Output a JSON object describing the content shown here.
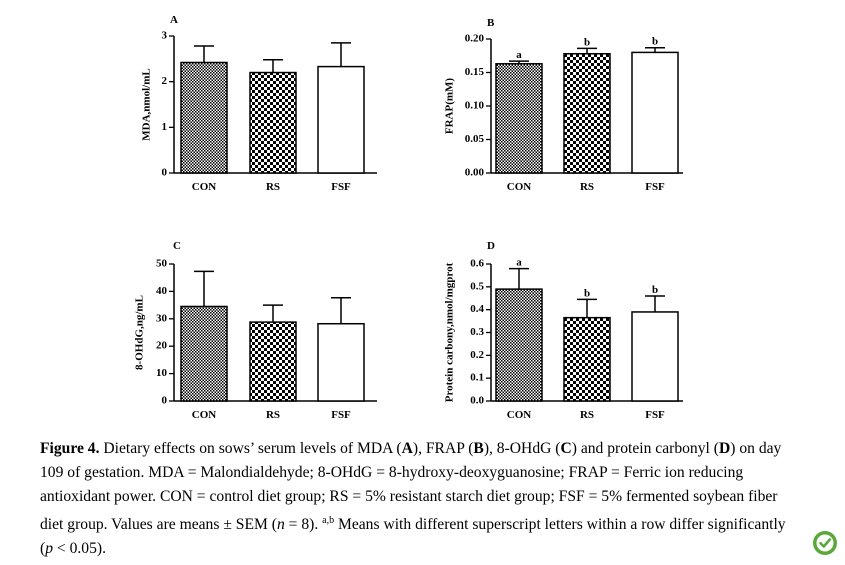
{
  "figure": {
    "caption": {
      "label": "Figure 4.",
      "t1": " Dietary effects on sows’ serum levels of MDA (",
      "A": "A",
      "t2": "), FRAP (",
      "B": "B",
      "t3": "), 8-OHdG (",
      "C": "C",
      "t4": ") and protein carbonyl (",
      "D": "D",
      "t5": ") on day 109 of gestation. MDA = Malondialdehyde; 8-OHdG = 8-hydroxy-deoxyguanosine; FRAP = Ferric ion reducing antioxidant power. CON = control diet group; RS = 5% resistant starch diet group; FSF = 5% fermented soybean fiber diet group. Values are means ± SEM (",
      "n": "n",
      "t6": " = 8). ",
      "sup": "a,b",
      "t7": " Means with different superscript letters within a row differ significantly (",
      "p": "p",
      "t8": " < 0.05)."
    }
  },
  "colors": {
    "bar_stroke": "#000000",
    "white_fill": "#ffffff",
    "logo_green": "#5aa83a"
  },
  "icons": {
    "logo": "leaf-check-icon"
  },
  "chart_data": [
    {
      "panel": "A",
      "type": "bar",
      "ylabel": "MDA,nmol/mL",
      "categories": [
        "CON",
        "RS",
        "FSF"
      ],
      "values": [
        2.42,
        2.2,
        2.33
      ],
      "sem": [
        0.36,
        0.28,
        0.52
      ],
      "patterns": [
        "checker-fine",
        "checker-coarse",
        "white"
      ],
      "ylim": [
        0,
        3
      ],
      "ticks": [
        0,
        1,
        2,
        3
      ],
      "tick_labels": [
        "0",
        "1",
        "2",
        "3"
      ],
      "letters": [
        "",
        "",
        ""
      ]
    },
    {
      "panel": "B",
      "type": "bar",
      "ylabel": "FRAP(mM)",
      "categories": [
        "CON",
        "RS",
        "FSF"
      ],
      "values": [
        0.163,
        0.178,
        0.18
      ],
      "sem": [
        0.004,
        0.008,
        0.007
      ],
      "patterns": [
        "checker-fine",
        "checker-coarse",
        "white"
      ],
      "ylim": [
        0,
        0.2
      ],
      "ticks": [
        0,
        0.05,
        0.1,
        0.15,
        0.2
      ],
      "tick_labels": [
        "0.00",
        "0.05",
        "0.10",
        "0.15",
        "0.20"
      ],
      "letters": [
        "a",
        "b",
        "b"
      ]
    },
    {
      "panel": "C",
      "type": "bar",
      "ylabel": "8-OHdG,ng/mL",
      "categories": [
        "CON",
        "RS",
        "FSF"
      ],
      "values": [
        34.5,
        28.8,
        28.2
      ],
      "sem": [
        12.8,
        6.2,
        9.5
      ],
      "patterns": [
        "checker-fine",
        "checker-coarse",
        "white"
      ],
      "ylim": [
        0,
        50
      ],
      "ticks": [
        0,
        10,
        20,
        30,
        40,
        50
      ],
      "tick_labels": [
        "0",
        "10",
        "20",
        "30",
        "40",
        "50"
      ],
      "letters": [
        "",
        "",
        ""
      ]
    },
    {
      "panel": "D",
      "type": "bar",
      "ylabel": "Protein carbony,nmol/mgprot",
      "categories": [
        "CON",
        "RS",
        "FSF"
      ],
      "values": [
        0.49,
        0.365,
        0.39
      ],
      "sem": [
        0.09,
        0.08,
        0.07
      ],
      "patterns": [
        "checker-fine",
        "checker-coarse",
        "white"
      ],
      "ylim": [
        0,
        0.6
      ],
      "ticks": [
        0,
        0.1,
        0.2,
        0.3,
        0.4,
        0.5,
        0.6
      ],
      "tick_labels": [
        "0.0",
        "0.1",
        "0.2",
        "0.3",
        "0.4",
        "0.5",
        "0.6"
      ],
      "letters": [
        "a",
        "b",
        "b"
      ]
    }
  ]
}
